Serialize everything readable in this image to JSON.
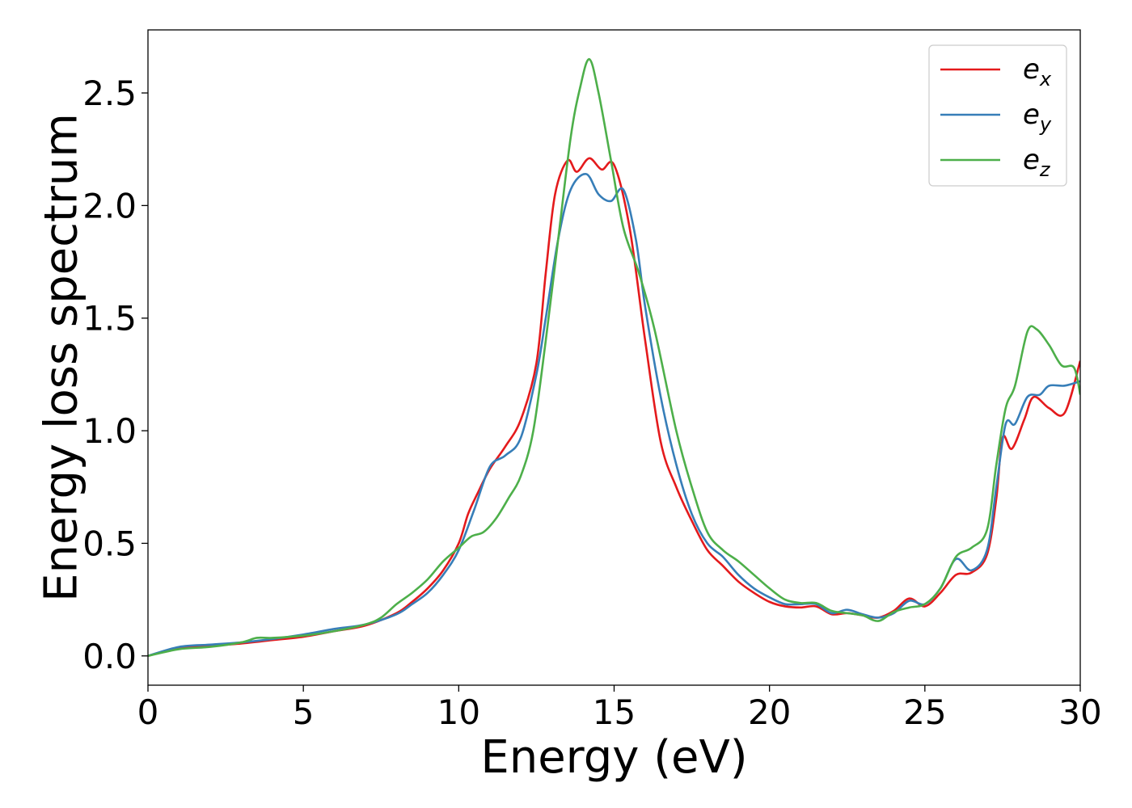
{
  "chart_data": {
    "type": "line",
    "title": "",
    "xlabel": "Energy (eV)",
    "ylabel": "Energy loss spectrum",
    "xlim": [
      0,
      30
    ],
    "ylim": [
      -0.13,
      2.78
    ],
    "xticks": [
      0,
      5,
      10,
      15,
      20,
      25,
      30
    ],
    "yticks": [
      0.0,
      0.5,
      1.0,
      1.5,
      2.0,
      2.5
    ],
    "xtick_labels": [
      "0",
      "5",
      "10",
      "15",
      "20",
      "25",
      "30"
    ],
    "ytick_labels": [
      "0.0",
      "0.5",
      "1.0",
      "1.5",
      "2.0",
      "2.5"
    ],
    "grid": false,
    "legend": "top-right",
    "series": [
      {
        "name": "e",
        "subscript": "x",
        "color": "#e41a1c",
        "points": [
          [
            0,
            0.0
          ],
          [
            1,
            0.035
          ],
          [
            2,
            0.045
          ],
          [
            3,
            0.055
          ],
          [
            4,
            0.07
          ],
          [
            5,
            0.085
          ],
          [
            6,
            0.11
          ],
          [
            7,
            0.135
          ],
          [
            8,
            0.19
          ],
          [
            8.5,
            0.24
          ],
          [
            9,
            0.3
          ],
          [
            9.5,
            0.38
          ],
          [
            10,
            0.5
          ],
          [
            10.3,
            0.63
          ],
          [
            10.6,
            0.72
          ],
          [
            11,
            0.83
          ],
          [
            11.5,
            0.93
          ],
          [
            12,
            1.05
          ],
          [
            12.5,
            1.3
          ],
          [
            12.8,
            1.7
          ],
          [
            13.1,
            2.05
          ],
          [
            13.5,
            2.2
          ],
          [
            13.8,
            2.15
          ],
          [
            14.2,
            2.21
          ],
          [
            14.6,
            2.16
          ],
          [
            15,
            2.18
          ],
          [
            15.5,
            1.9
          ],
          [
            16,
            1.4
          ],
          [
            16.5,
            0.95
          ],
          [
            17,
            0.75
          ],
          [
            17.5,
            0.6
          ],
          [
            18,
            0.47
          ],
          [
            18.5,
            0.4
          ],
          [
            19,
            0.33
          ],
          [
            19.5,
            0.28
          ],
          [
            20,
            0.24
          ],
          [
            20.5,
            0.22
          ],
          [
            21,
            0.215
          ],
          [
            21.5,
            0.22
          ],
          [
            22,
            0.185
          ],
          [
            22.5,
            0.19
          ],
          [
            23,
            0.18
          ],
          [
            23.5,
            0.17
          ],
          [
            24,
            0.2
          ],
          [
            24.5,
            0.255
          ],
          [
            25,
            0.22
          ],
          [
            25.5,
            0.28
          ],
          [
            26,
            0.36
          ],
          [
            26.5,
            0.37
          ],
          [
            27,
            0.45
          ],
          [
            27.3,
            0.7
          ],
          [
            27.5,
            0.97
          ],
          [
            27.8,
            0.92
          ],
          [
            28.2,
            1.05
          ],
          [
            28.5,
            1.15
          ],
          [
            29,
            1.1
          ],
          [
            29.5,
            1.08
          ],
          [
            30,
            1.31
          ]
        ]
      },
      {
        "name": "e",
        "subscript": "y",
        "color": "#377eb8",
        "points": [
          [
            0,
            0.0
          ],
          [
            1,
            0.04
          ],
          [
            2,
            0.05
          ],
          [
            3,
            0.06
          ],
          [
            4,
            0.075
          ],
          [
            5,
            0.095
          ],
          [
            6,
            0.12
          ],
          [
            7,
            0.14
          ],
          [
            8,
            0.185
          ],
          [
            8.5,
            0.23
          ],
          [
            9,
            0.28
          ],
          [
            9.5,
            0.36
          ],
          [
            10,
            0.47
          ],
          [
            10.5,
            0.65
          ],
          [
            11,
            0.84
          ],
          [
            11.5,
            0.89
          ],
          [
            12,
            0.97
          ],
          [
            12.5,
            1.25
          ],
          [
            12.8,
            1.5
          ],
          [
            13.2,
            1.85
          ],
          [
            13.6,
            2.07
          ],
          [
            14.1,
            2.14
          ],
          [
            14.5,
            2.05
          ],
          [
            14.9,
            2.02
          ],
          [
            15.3,
            2.07
          ],
          [
            15.7,
            1.85
          ],
          [
            16,
            1.55
          ],
          [
            16.5,
            1.15
          ],
          [
            17,
            0.85
          ],
          [
            17.5,
            0.63
          ],
          [
            18,
            0.5
          ],
          [
            18.5,
            0.44
          ],
          [
            19,
            0.36
          ],
          [
            19.5,
            0.3
          ],
          [
            20,
            0.26
          ],
          [
            20.5,
            0.23
          ],
          [
            21,
            0.23
          ],
          [
            21.5,
            0.23
          ],
          [
            22,
            0.19
          ],
          [
            22.5,
            0.205
          ],
          [
            23,
            0.185
          ],
          [
            23.5,
            0.17
          ],
          [
            24,
            0.19
          ],
          [
            24.5,
            0.245
          ],
          [
            25,
            0.23
          ],
          [
            25.5,
            0.3
          ],
          [
            26,
            0.43
          ],
          [
            26.5,
            0.38
          ],
          [
            27,
            0.47
          ],
          [
            27.3,
            0.75
          ],
          [
            27.6,
            1.03
          ],
          [
            27.9,
            1.03
          ],
          [
            28.3,
            1.15
          ],
          [
            28.7,
            1.16
          ],
          [
            29,
            1.2
          ],
          [
            29.5,
            1.2
          ],
          [
            30,
            1.22
          ]
        ]
      },
      {
        "name": "e",
        "subscript": "z",
        "color": "#4daf4a",
        "points": [
          [
            0,
            0.0
          ],
          [
            1,
            0.03
          ],
          [
            2,
            0.04
          ],
          [
            3,
            0.06
          ],
          [
            3.5,
            0.08
          ],
          [
            4,
            0.08
          ],
          [
            5,
            0.09
          ],
          [
            6,
            0.11
          ],
          [
            7,
            0.14
          ],
          [
            7.5,
            0.17
          ],
          [
            8,
            0.23
          ],
          [
            8.5,
            0.28
          ],
          [
            9,
            0.34
          ],
          [
            9.5,
            0.42
          ],
          [
            10,
            0.48
          ],
          [
            10.4,
            0.53
          ],
          [
            10.8,
            0.55
          ],
          [
            11.2,
            0.61
          ],
          [
            11.6,
            0.7
          ],
          [
            12,
            0.8
          ],
          [
            12.4,
            1.0
          ],
          [
            12.8,
            1.4
          ],
          [
            13.2,
            1.85
          ],
          [
            13.6,
            2.3
          ],
          [
            13.9,
            2.52
          ],
          [
            14.2,
            2.65
          ],
          [
            14.5,
            2.5
          ],
          [
            14.9,
            2.2
          ],
          [
            15.3,
            1.9
          ],
          [
            15.8,
            1.7
          ],
          [
            16.3,
            1.45
          ],
          [
            17,
            1.0
          ],
          [
            17.5,
            0.75
          ],
          [
            18,
            0.55
          ],
          [
            18.5,
            0.47
          ],
          [
            19,
            0.42
          ],
          [
            19.5,
            0.36
          ],
          [
            20,
            0.3
          ],
          [
            20.5,
            0.25
          ],
          [
            21,
            0.235
          ],
          [
            21.5,
            0.235
          ],
          [
            22,
            0.2
          ],
          [
            22.5,
            0.19
          ],
          [
            23,
            0.18
          ],
          [
            23.5,
            0.155
          ],
          [
            24,
            0.195
          ],
          [
            24.5,
            0.215
          ],
          [
            25,
            0.23
          ],
          [
            25.5,
            0.3
          ],
          [
            26,
            0.44
          ],
          [
            26.5,
            0.48
          ],
          [
            27,
            0.56
          ],
          [
            27.3,
            0.85
          ],
          [
            27.6,
            1.1
          ],
          [
            27.9,
            1.2
          ],
          [
            28.3,
            1.44
          ],
          [
            28.6,
            1.45
          ],
          [
            29,
            1.38
          ],
          [
            29.4,
            1.29
          ],
          [
            29.8,
            1.28
          ],
          [
            30,
            1.16
          ]
        ]
      }
    ]
  }
}
